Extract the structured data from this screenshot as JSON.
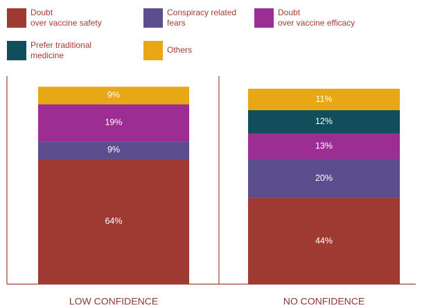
{
  "chart_data": {
    "type": "stacked_bar",
    "categories": [
      "LOW CONFIDENCE",
      "NO CONFIDENCE"
    ],
    "series": [
      {
        "name": "Doubt over vaccine safety",
        "color": "#9e3a31",
        "values": [
          64,
          44
        ],
        "value_labels": [
          "64%",
          "44%"
        ]
      },
      {
        "name": "Conspiracy related fears",
        "color": "#5c4d8e",
        "values": [
          9,
          20
        ],
        "value_labels": [
          "9%",
          "20%"
        ]
      },
      {
        "name": "Doubt over vaccine efficacy",
        "color": "#9c2e93",
        "values": [
          19,
          13
        ],
        "value_labels": [
          "19%",
          "13%"
        ]
      },
      {
        "name": "Prefer traditional medicine",
        "color": "#0f4e5a",
        "values": [
          0,
          12
        ],
        "value_labels": [
          null,
          "12%"
        ]
      },
      {
        "name": "Others",
        "color": "#e8a714",
        "values": [
          9,
          11
        ],
        "value_labels": [
          "9%",
          "11%"
        ]
      }
    ],
    "ylim": [
      0,
      100
    ]
  }
}
